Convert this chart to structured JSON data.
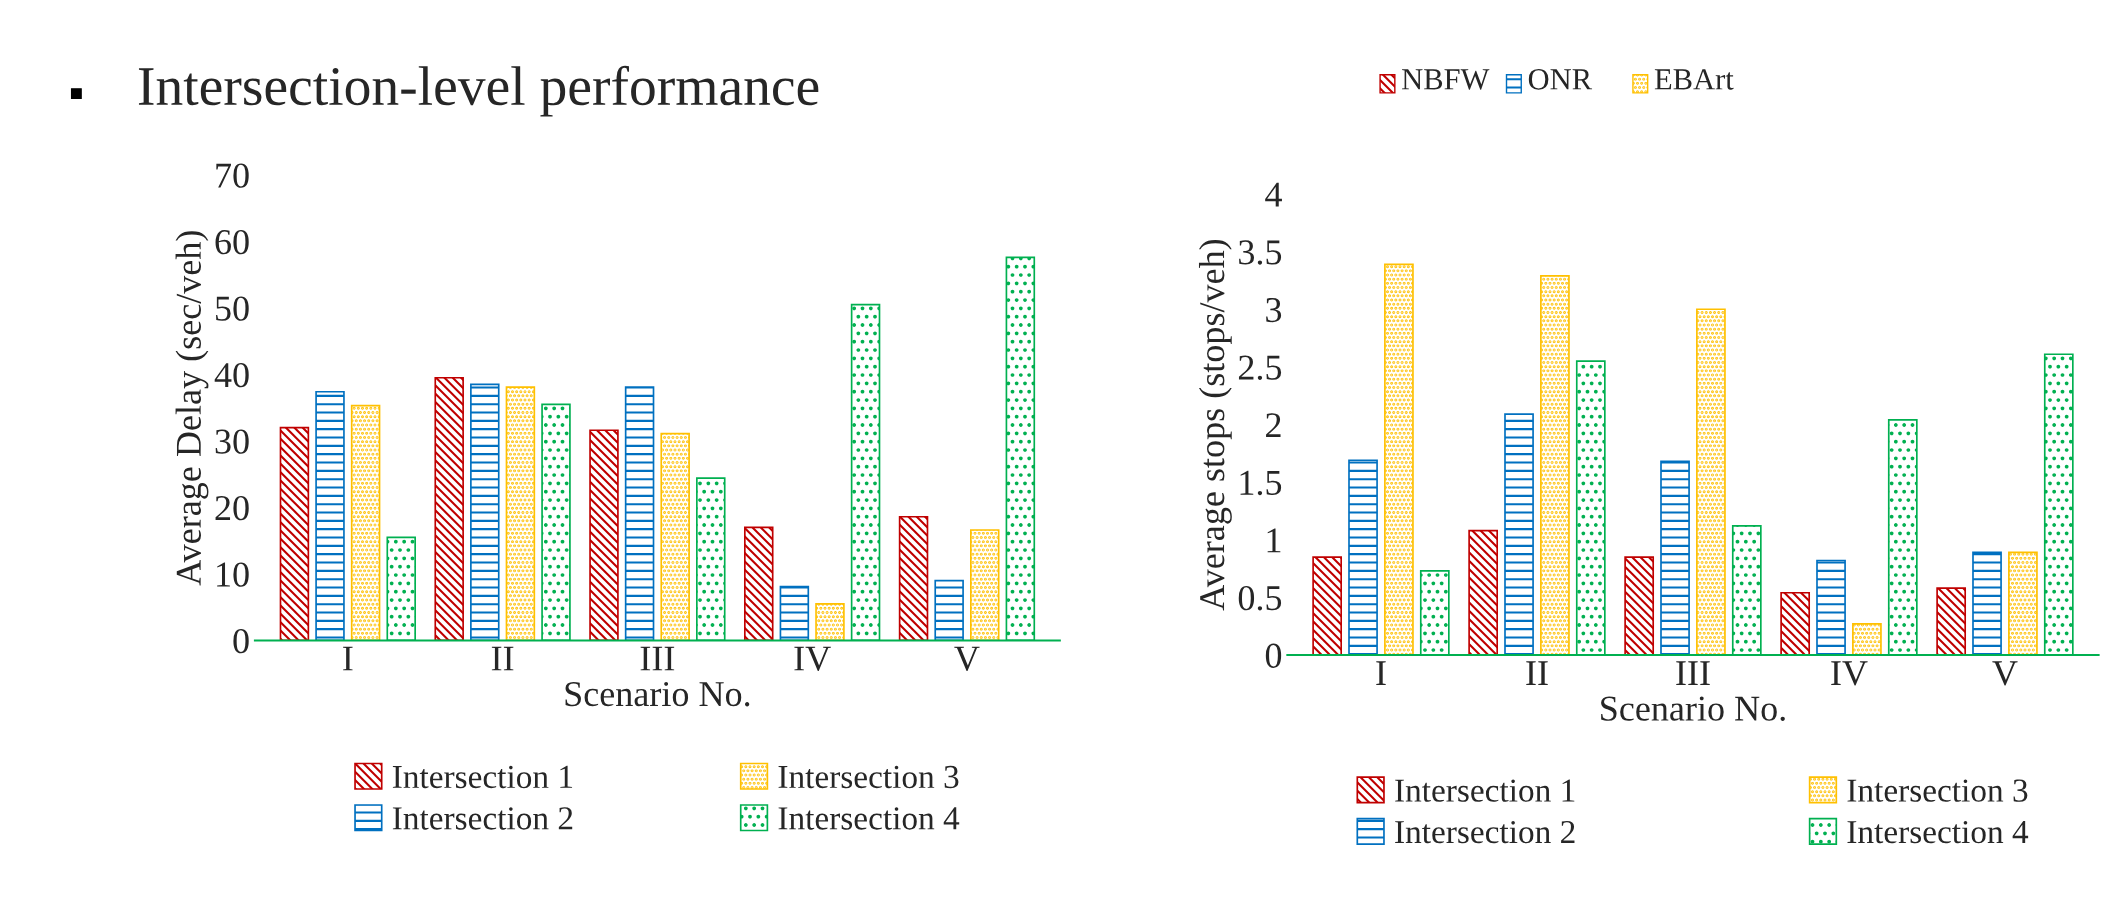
{
  "chart_data": [
    {
      "type": "bar",
      "title": "Intersection-level performance",
      "xlabel": "Scenario No.",
      "ylabel": "Average Delay (sec/veh)",
      "categories": [
        "I",
        "II",
        "III",
        "IV",
        "V"
      ],
      "series": [
        {
          "name": "Intersection 1",
          "color": "#c00000",
          "values": [
            32.0,
            39.5,
            31.6,
            17.0,
            18.6
          ]
        },
        {
          "name": "Intersection 2",
          "color": "#0070c0",
          "values": [
            37.4,
            38.5,
            38.1,
            8.1,
            9.0
          ]
        },
        {
          "name": "Intersection 3",
          "color": "#ffc000",
          "values": [
            35.3,
            38.1,
            31.1,
            5.5,
            16.6
          ]
        },
        {
          "name": "Intersection 4",
          "color": "#00b050",
          "values": [
            15.5,
            35.5,
            24.4,
            50.5,
            57.6
          ]
        }
      ],
      "ylim": [
        0,
        70
      ],
      "yticks": [
        0,
        10,
        20,
        30,
        40,
        50,
        60,
        70
      ],
      "grid": false,
      "legend": "bottom"
    },
    {
      "type": "bar",
      "xlabel": "Scenario No.",
      "ylabel": "Average stops (stops/veh)",
      "categories": [
        "I",
        "II",
        "III",
        "IV",
        "V"
      ],
      "series": [
        {
          "name": "Intersection 1",
          "color": "#c00000",
          "values": [
            0.85,
            1.08,
            0.85,
            0.54,
            0.58
          ]
        },
        {
          "name": "Intersection 2",
          "color": "#0070c0",
          "values": [
            1.69,
            2.09,
            1.68,
            0.82,
            0.89
          ]
        },
        {
          "name": "Intersection 3",
          "color": "#ffc000",
          "values": [
            3.39,
            3.29,
            3.0,
            0.27,
            0.89
          ]
        },
        {
          "name": "Intersection 4",
          "color": "#00b050",
          "values": [
            0.73,
            2.55,
            1.12,
            2.04,
            2.61
          ]
        }
      ],
      "ylim": [
        0,
        4
      ],
      "yticks": [
        0,
        0.5,
        1,
        1.5,
        2,
        2.5,
        3,
        3.5,
        4
      ],
      "grid": false,
      "legend": "bottom",
      "annotations": [
        "NBFW",
        "ONR",
        "EBArt"
      ]
    }
  ]
}
